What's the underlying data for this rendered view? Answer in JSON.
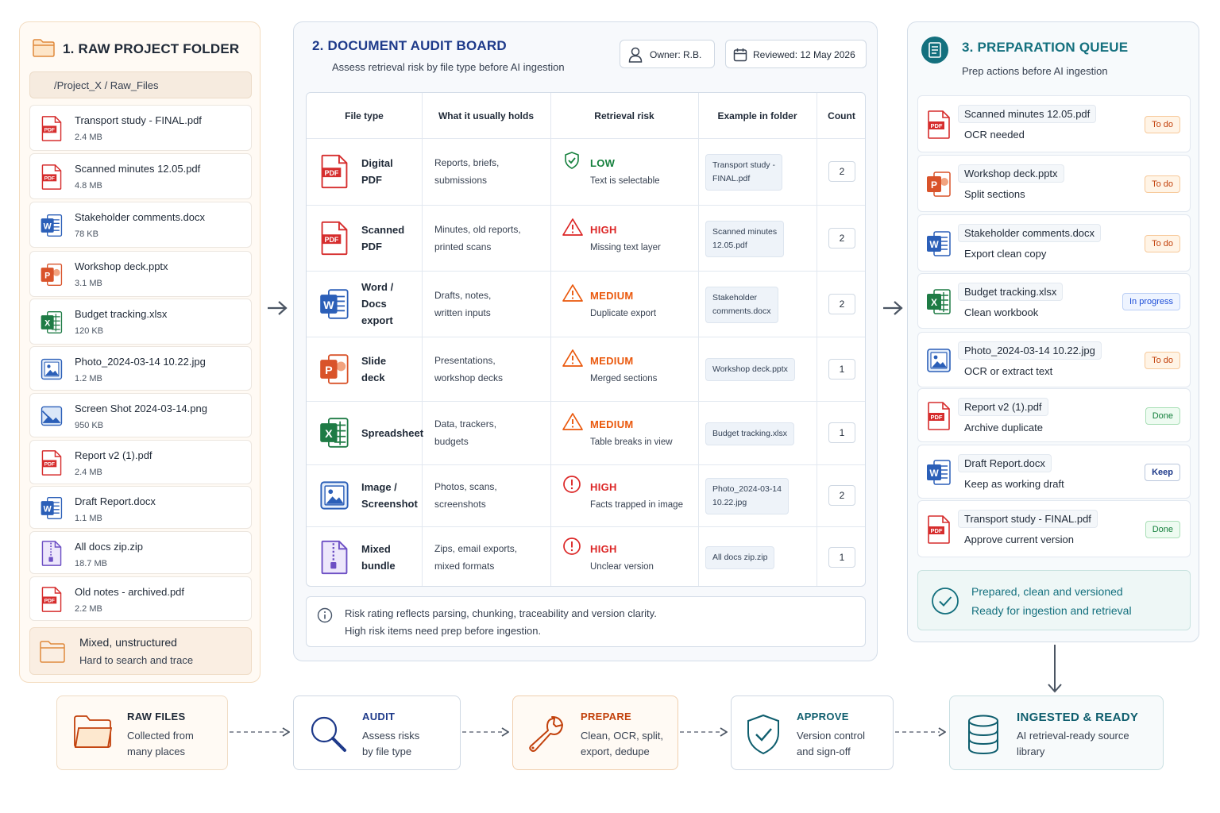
{
  "panel1": {
    "title": "1. RAW PROJECT FOLDER",
    "path": "/Project_X  /  Raw_Files",
    "files": [
      {
        "name": "Transport study - FINAL.pdf",
        "size": "2.4 MB",
        "icon": "pdf-icon"
      },
      {
        "name": "Scanned minutes 12.05.pdf",
        "size": "4.8 MB",
        "icon": "pdf-icon"
      },
      {
        "name": "Stakeholder comments.docx",
        "size": "78 KB",
        "icon": "word-icon"
      },
      {
        "name": "Workshop deck.pptx",
        "size": "3.1 MB",
        "icon": "powerpoint-icon"
      },
      {
        "name": "Budget tracking.xlsx",
        "size": "120 KB",
        "icon": "excel-icon"
      },
      {
        "name": "Photo_2024-03-14 10.22.jpg",
        "size": "1.2 MB",
        "icon": "image-icon"
      },
      {
        "name": "Screen Shot 2024-03-14.png",
        "size": "950 KB",
        "icon": "screenshot-icon"
      },
      {
        "name": "Report v2 (1).pdf",
        "size": "2.4 MB",
        "icon": "pdf-icon"
      },
      {
        "name": "Draft Report.docx",
        "size": "1.1 MB",
        "icon": "word-icon"
      },
      {
        "name": "All docs zip.zip",
        "size": "18.7 MB",
        "icon": "zip-icon"
      },
      {
        "name": "Old notes - archived.pdf",
        "size": "2.2 MB",
        "icon": "pdf-icon"
      }
    ],
    "summary_title": "Mixed, unstructured",
    "summary_sub": "Hard to search and trace"
  },
  "panel2": {
    "title": "2.  DOCUMENT AUDIT BOARD",
    "subtitle": "Assess retrieval risk by file type before AI ingestion",
    "owner": "Owner:  R.B.",
    "reviewed": "Reviewed:  12 May 2026",
    "headers": [
      "File type",
      "What it usually holds",
      "Retrieval risk",
      "Example in folder",
      "Count"
    ],
    "rows": [
      {
        "type": [
          "Digital",
          "PDF"
        ],
        "holds": [
          "Reports, briefs,",
          "submissions"
        ],
        "risk": "LOW",
        "note": "Text is selectable",
        "example": [
          "Transport study -",
          "FINAL.pdf"
        ],
        "count": "2",
        "icon": "pdf-icon",
        "risk_icon": "shield-check-icon"
      },
      {
        "type": [
          "Scanned",
          "PDF"
        ],
        "holds": [
          "Minutes, old reports,",
          "printed scans"
        ],
        "risk": "HIGH",
        "note": "Missing text layer",
        "example": [
          "Scanned minutes",
          "12.05.pdf"
        ],
        "count": "2",
        "icon": "pdf-icon",
        "risk_icon": "warning-icon"
      },
      {
        "type": [
          "Word /",
          "Docs",
          "export"
        ],
        "holds": [
          "Drafts, notes,",
          "written inputs"
        ],
        "risk": "MEDIUM",
        "note": "Duplicate export",
        "example": [
          "Stakeholder",
          "comments.docx"
        ],
        "count": "2",
        "icon": "word-icon",
        "risk_icon": "warning-icon"
      },
      {
        "type": [
          "Slide",
          "deck"
        ],
        "holds": [
          "Presentations,",
          "workshop decks"
        ],
        "risk": "MEDIUM",
        "note": "Merged sections",
        "example": [
          "Workshop deck.pptx"
        ],
        "count": "1",
        "icon": "powerpoint-icon",
        "risk_icon": "warning-icon"
      },
      {
        "type": [
          "Spreadsheet"
        ],
        "holds": [
          "Data, trackers,",
          "budgets"
        ],
        "risk": "MEDIUM",
        "note": "Table breaks in view",
        "example": [
          "Budget tracking.xlsx"
        ],
        "count": "1",
        "icon": "excel-icon",
        "risk_icon": "warning-icon"
      },
      {
        "type": [
          "Image /",
          "Screenshot"
        ],
        "holds": [
          "Photos, scans,",
          "screenshots"
        ],
        "risk": "HIGH",
        "note": "Facts trapped in image",
        "example": [
          "Photo_2024-03-14",
          "10.22.jpg"
        ],
        "count": "2",
        "icon": "image-icon",
        "risk_icon": "alert-circle-icon"
      },
      {
        "type": [
          "Mixed",
          "bundle"
        ],
        "holds": [
          "Zips, email exports,",
          "mixed formats"
        ],
        "risk": "HIGH",
        "note": "Unclear version",
        "example": [
          "All docs zip.zip"
        ],
        "count": "1",
        "icon": "zip-icon",
        "risk_icon": "alert-circle-icon"
      }
    ],
    "note_line1": "Risk rating reflects parsing, chunking, traceability and version clarity.",
    "note_line2": "High risk items need prep before ingestion.",
    "colors": {
      "low": "#15803d",
      "high": "#dc2626",
      "medium": "#ea580c"
    }
  },
  "panel3": {
    "title": "3. PREPARATION QUEUE",
    "subtitle": "Prep actions before AI ingestion",
    "items": [
      {
        "name": "Scanned minutes 12.05.pdf",
        "action": "OCR needed",
        "status": "To do",
        "kind": "todo",
        "icon": "pdf-icon"
      },
      {
        "name": "Workshop deck.pptx",
        "action": "Split sections",
        "status": "To do",
        "kind": "todo",
        "icon": "powerpoint-icon"
      },
      {
        "name": "Stakeholder comments.docx",
        "action": "Export clean copy",
        "status": "To do",
        "kind": "todo",
        "icon": "word-icon"
      },
      {
        "name": "Budget tracking.xlsx",
        "action": "Clean workbook",
        "status": "In progress",
        "kind": "prog",
        "icon": "excel-icon"
      },
      {
        "name": "Photo_2024-03-14 10.22.jpg",
        "action": "OCR or extract text",
        "status": "To do",
        "kind": "todo",
        "icon": "image-icon"
      },
      {
        "name": "Report v2 (1).pdf",
        "action": "Archive duplicate",
        "status": "Done",
        "kind": "done",
        "icon": "pdf-icon"
      },
      {
        "name": "Draft Report.docx",
        "action": "Keep as working draft",
        "status": "Keep",
        "kind": "keep",
        "icon": "word-icon"
      },
      {
        "name": "Transport study - FINAL.pdf",
        "action": "Approve current version",
        "status": "Done",
        "kind": "done",
        "icon": "pdf-icon"
      }
    ],
    "ready_line1": "Prepared, clean and versioned",
    "ready_line2": "Ready for ingestion and retrieval"
  },
  "flow": [
    {
      "title": "RAW FILES",
      "desc": [
        "Collected from",
        "many places"
      ],
      "icon": "folder-icon",
      "color": "#c2410c"
    },
    {
      "title": "AUDIT",
      "desc": [
        "Assess risks",
        "by file type"
      ],
      "icon": "magnifier-icon",
      "color": "#1e3a8a"
    },
    {
      "title": "PREPARE",
      "desc": [
        "Clean, OCR, split,",
        "export, dedupe"
      ],
      "icon": "wrench-icon",
      "color": "#c2410c"
    },
    {
      "title": "APPROVE",
      "desc": [
        "Version control",
        "and sign-off"
      ],
      "icon": "shield-check-icon",
      "color": "#0f5e6e"
    },
    {
      "title": "INGESTED & READY",
      "desc": [
        "AI retrieval-ready source",
        "library"
      ],
      "icon": "database-icon",
      "color": "#0f5e6e"
    }
  ]
}
